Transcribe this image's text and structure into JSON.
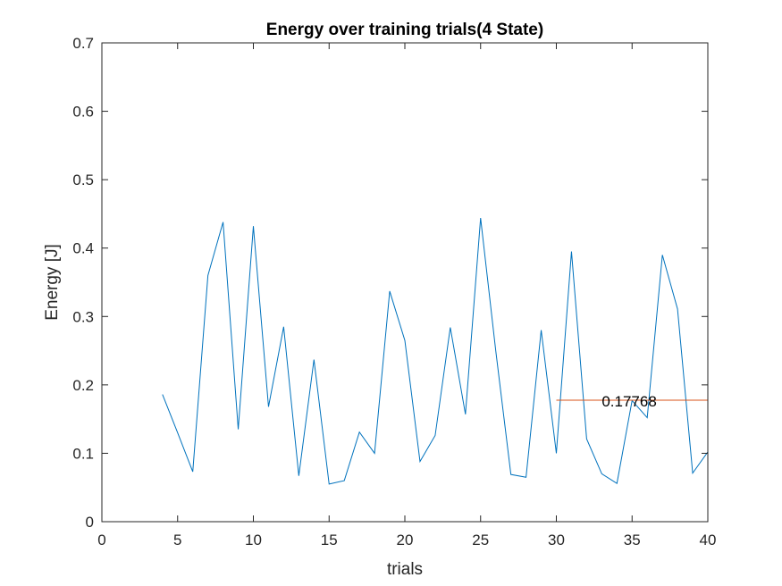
{
  "chart_data": {
    "type": "line",
    "title": "Energy over training trials(4 State)",
    "xlabel": "trials",
    "ylabel": "Energy [J]",
    "xlim": [
      0,
      40
    ],
    "ylim": [
      0,
      0.7
    ],
    "xticks": [
      0,
      5,
      10,
      15,
      20,
      25,
      30,
      35,
      40
    ],
    "yticks": [
      0,
      0.1,
      0.2,
      0.3,
      0.4,
      0.5,
      0.6,
      0.7
    ],
    "grid": false,
    "legend": "none",
    "series": [
      {
        "color": "#0072BD",
        "x": [
          4,
          5,
          6,
          7,
          8,
          9,
          10,
          11,
          12,
          13,
          14,
          15,
          16,
          17,
          18,
          19,
          20,
          21,
          22,
          23,
          24,
          25,
          26,
          27,
          28,
          29,
          30,
          31,
          32,
          33,
          34,
          35,
          36,
          37,
          38,
          39,
          40
        ],
        "y": [
          0.186,
          0.13,
          0.073,
          0.36,
          0.438,
          0.135,
          0.432,
          0.168,
          0.285,
          0.067,
          0.237,
          0.055,
          0.06,
          0.131,
          0.1,
          0.337,
          0.265,
          0.088,
          0.126,
          0.284,
          0.157,
          0.444,
          0.25,
          0.069,
          0.065,
          0.28,
          0.1,
          0.395,
          0.121,
          0.07,
          0.056,
          0.177,
          0.152,
          0.39,
          0.311,
          0.071,
          0.102
        ]
      },
      {
        "color": "#D95319",
        "x": [
          30,
          40
        ],
        "y": [
          0.17768,
          0.17768
        ]
      }
    ],
    "annotations": [
      {
        "text": "0.17768",
        "x": 33,
        "y": 0.17768
      }
    ]
  }
}
